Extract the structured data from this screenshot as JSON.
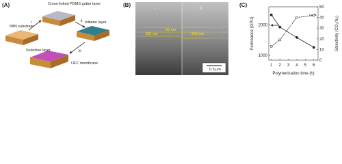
{
  "panel_a": {
    "label": "(A)",
    "substrate": "PAN substrate",
    "gutter": "Cross-linked PDMS gutter layer",
    "initiator": "Initiator layer",
    "selective": "Selective layer",
    "membrane": "UFC membrane",
    "step_1": "i",
    "step_2": "ii",
    "step_3": "iii"
  },
  "panel_b": {
    "label": "(B)",
    "region_1": "i",
    "region_2": "ii",
    "thickness_top": "55 nm",
    "thickness_1": "190 nm",
    "thickness_2": "260 nm",
    "scale_bar": "0.5 μm"
  },
  "chart_data": {
    "type": "line",
    "label": "(C)",
    "x_label": "Polymerization time (h)",
    "y_label": "Permeance (GPU)",
    "y2_label": "Selectivity (CO₂/N₂)",
    "xlim": [
      0.7,
      6.5
    ],
    "xticks": [
      1,
      2,
      3,
      4,
      5,
      6
    ],
    "ylim": [
      900,
      3000
    ],
    "yticks": [
      1000,
      2000
    ],
    "y_scale": "log",
    "y2lim": [
      0,
      50
    ],
    "y2ticks": [
      0,
      10,
      20,
      30,
      40,
      50
    ],
    "series": [
      {
        "name": "Permeance",
        "color": "#222222",
        "marker": "filled",
        "x": [
          1,
          2,
          4,
          6
        ],
        "values": [
          2500,
          1900,
          1500,
          1200
        ]
      },
      {
        "name": "Selectivity",
        "color": "#222222",
        "marker": "open",
        "axis": "y2",
        "x": [
          1,
          2,
          4,
          6
        ],
        "values": [
          13,
          19,
          40,
          42
        ]
      }
    ]
  }
}
